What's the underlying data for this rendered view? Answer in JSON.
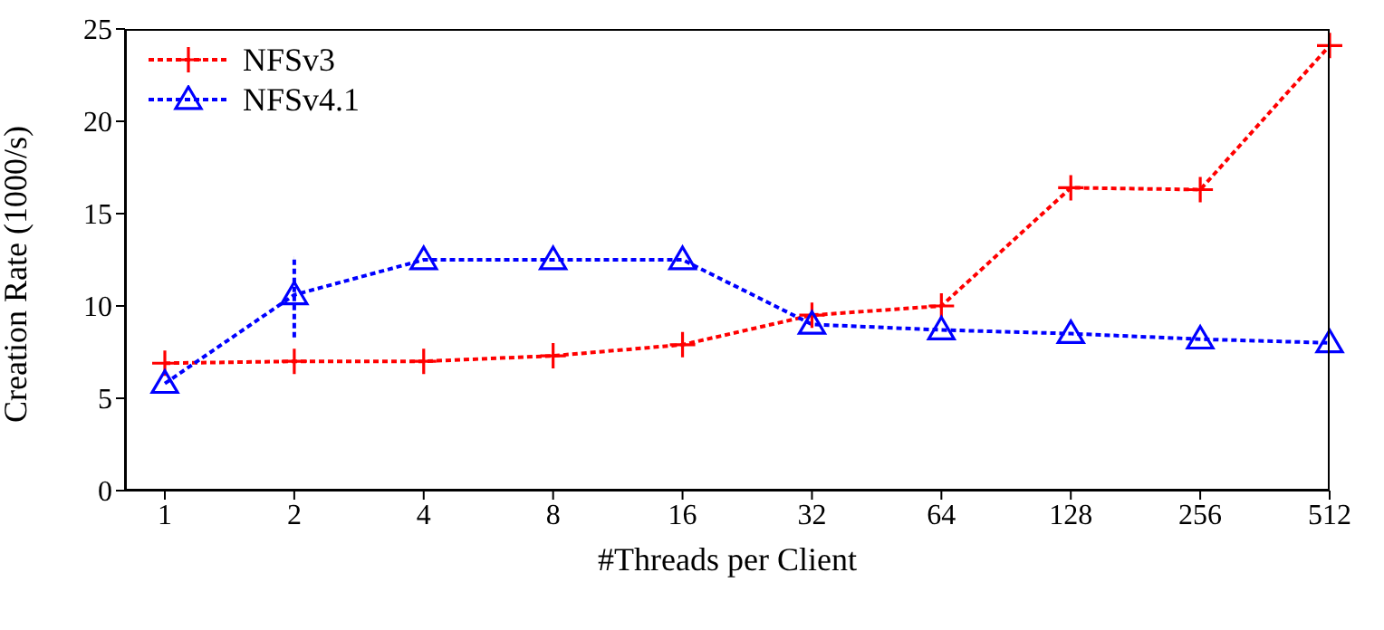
{
  "chart_data": {
    "type": "line",
    "xlabel": "#Threads per Client",
    "ylabel": "Creation Rate (1000/s)",
    "categories": [
      "1",
      "2",
      "4",
      "8",
      "16",
      "32",
      "64",
      "128",
      "256",
      "512"
    ],
    "series": [
      {
        "name": "NFSv3",
        "color": "#ff0000",
        "marker": "cross",
        "line_style": "dotted",
        "values": [
          6.9,
          7.0,
          7.0,
          7.3,
          7.9,
          9.5,
          10.0,
          16.4,
          16.3,
          24.1
        ]
      },
      {
        "name": "NFSv4.1",
        "color": "#0000ff",
        "marker": "triangle",
        "line_style": "dotted",
        "values": [
          5.8,
          10.6,
          12.5,
          12.5,
          12.5,
          9.0,
          8.7,
          8.5,
          8.2,
          8.0
        ],
        "errors": [
          null,
          [
            8.3,
            12.6
          ],
          null,
          null,
          null,
          null,
          null,
          null,
          null,
          null
        ]
      }
    ],
    "ylim": [
      0,
      25
    ],
    "yticks": [
      0,
      5,
      10,
      15,
      20,
      25
    ],
    "grid": false,
    "legend": "top left"
  }
}
